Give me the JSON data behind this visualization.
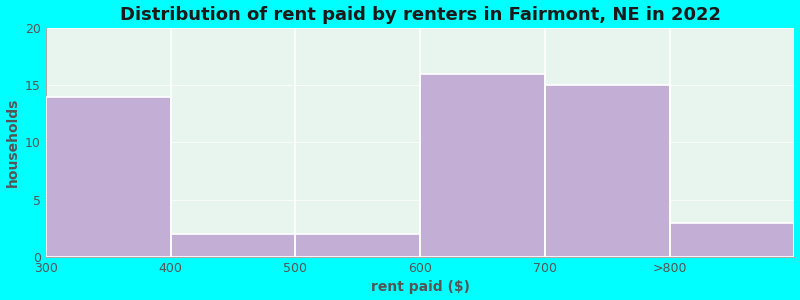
{
  "title": "Distribution of rent paid by renters in Fairmont, NE in 2022",
  "xlabel": "rent paid ($)",
  "ylabel": "households",
  "background_color": "#00FFFF",
  "plot_bg_gradient_top": "#e8f5ee",
  "plot_bg_gradient_bottom": "#f5fbf8",
  "bar_color": "#c3aed6",
  "categories": [
    "300",
    "400",
    "500",
    "600",
    "700",
    ">800"
  ],
  "values": [
    14,
    2,
    2,
    16,
    15,
    3
  ],
  "n_bins": 6,
  "ylim": [
    0,
    20
  ],
  "yticks": [
    0,
    5,
    10,
    15,
    20
  ],
  "title_fontsize": 13,
  "axis_label_fontsize": 10,
  "tick_fontsize": 9,
  "title_color": "#1a1a1a",
  "label_color": "#555555",
  "tick_color": "#555555",
  "spine_color": "#aaaaaa"
}
